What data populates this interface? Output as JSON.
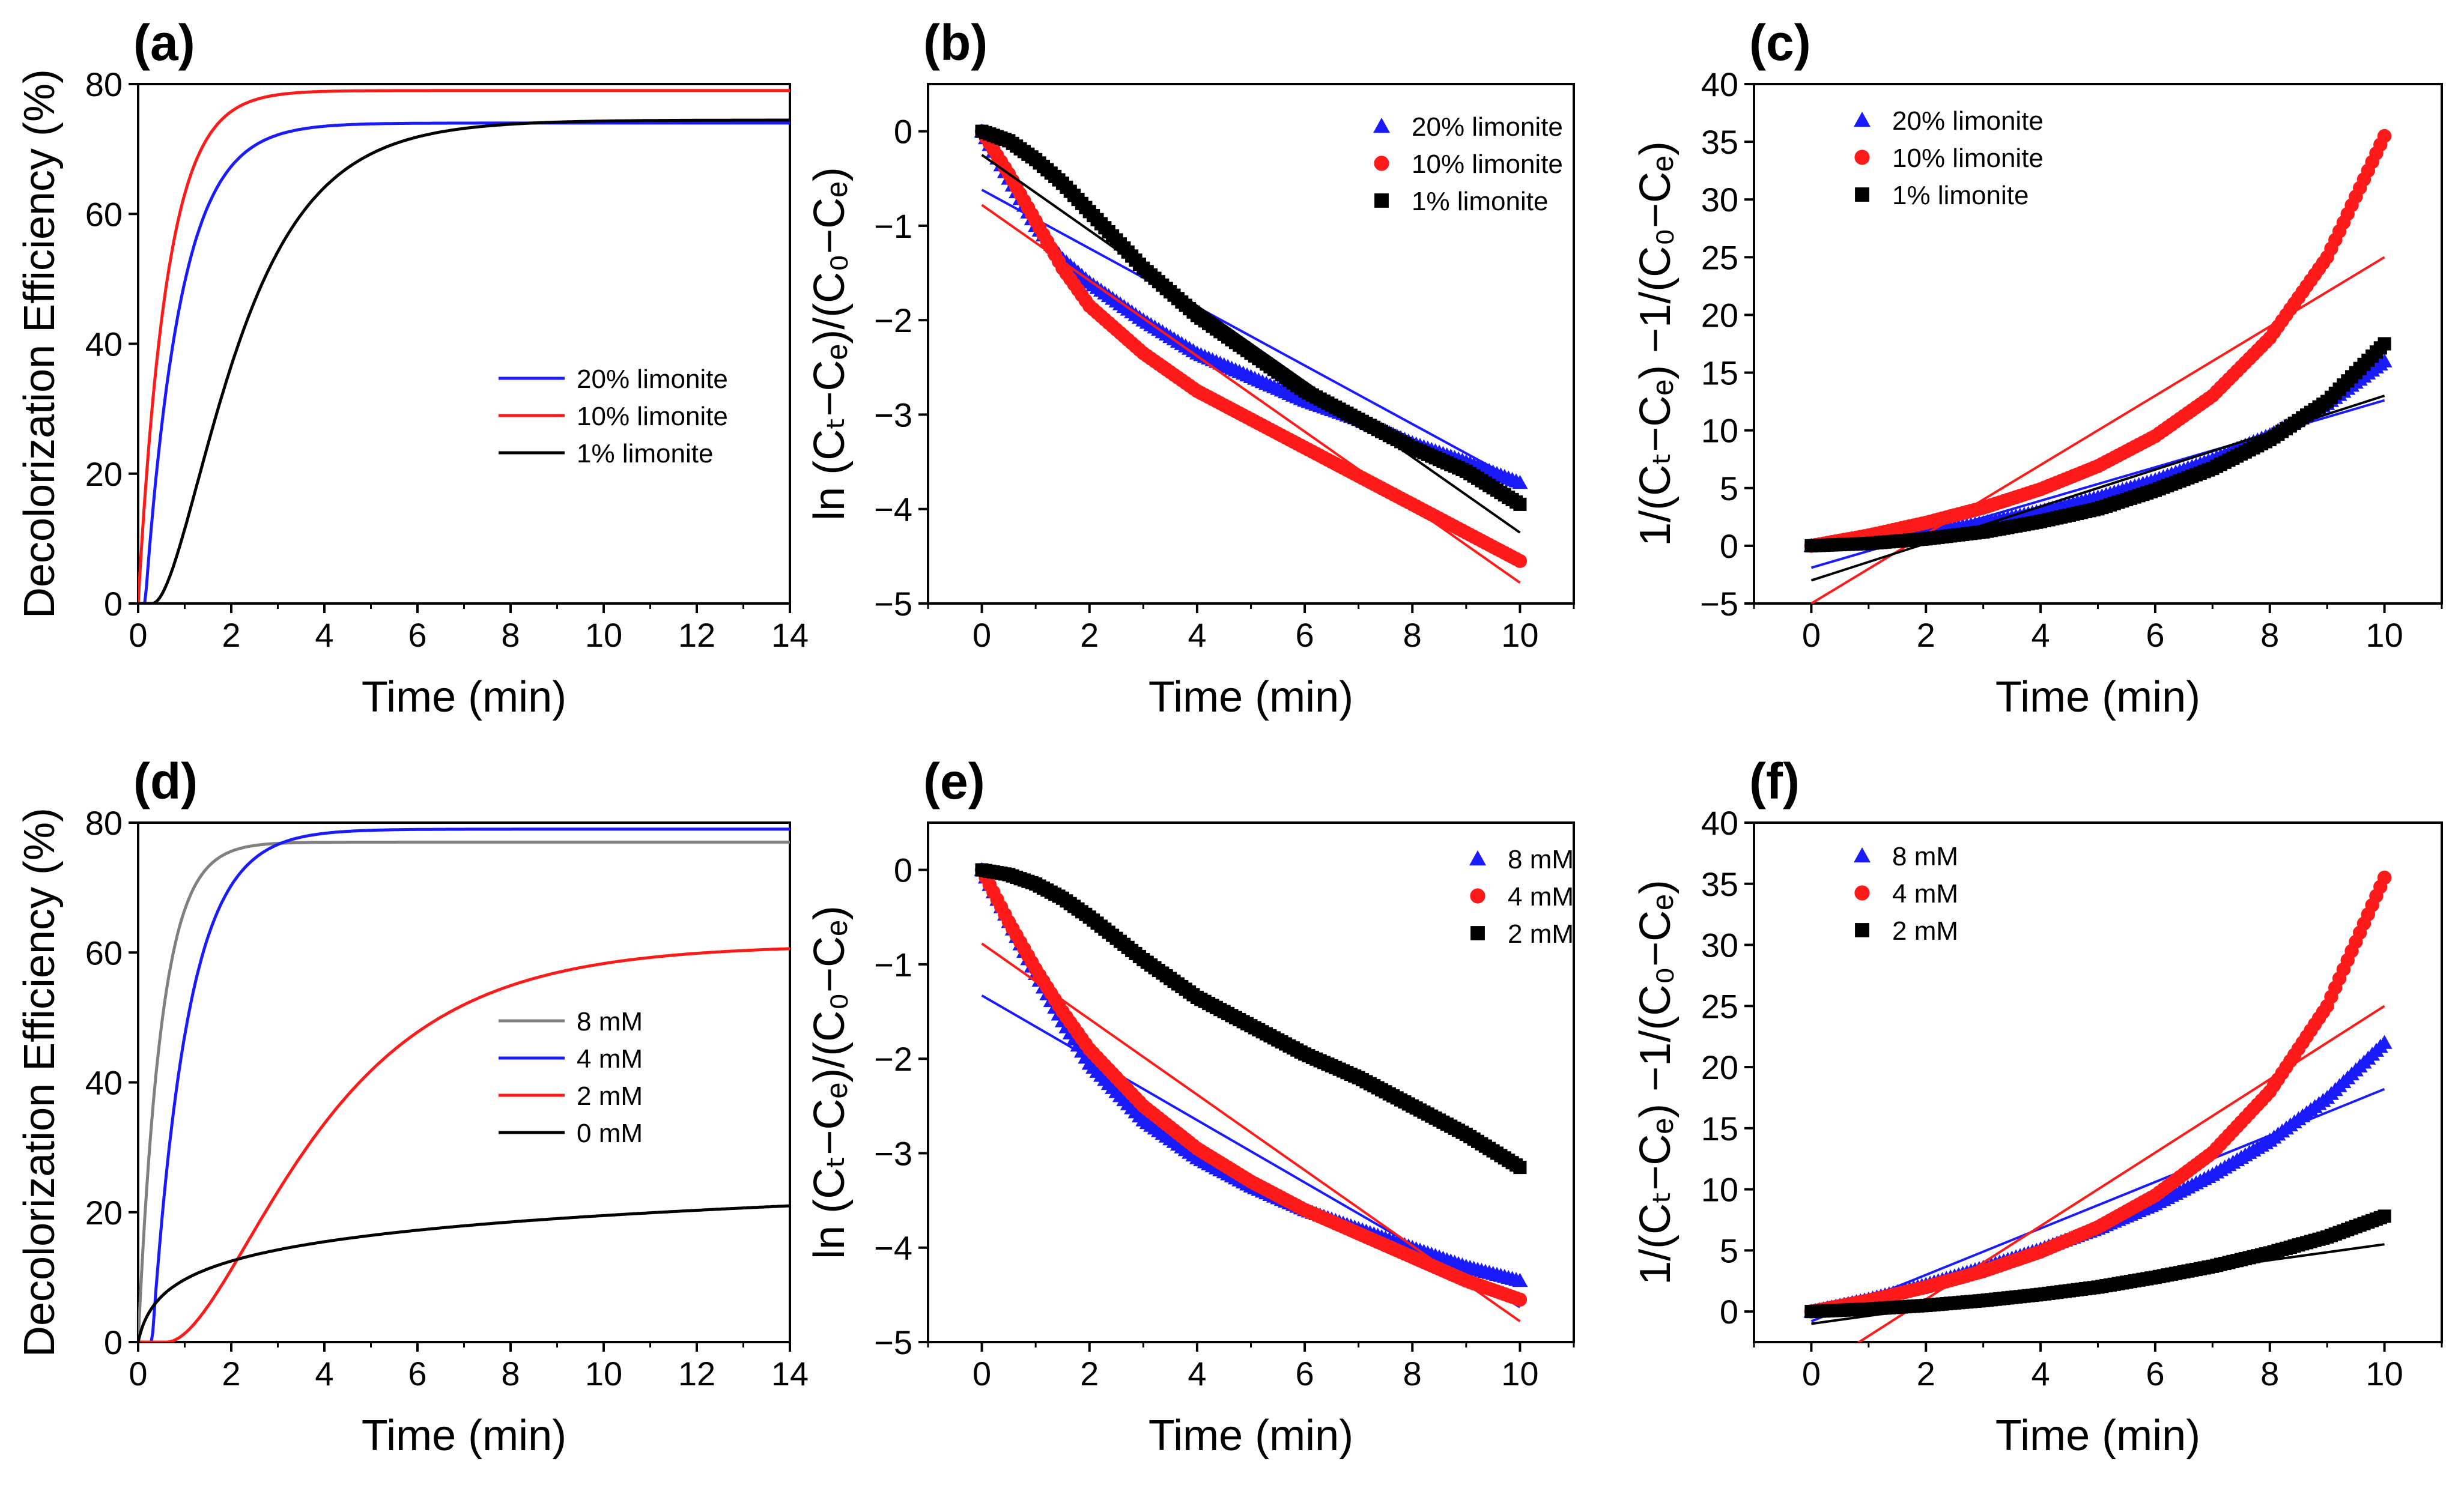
{
  "figure": {
    "panels": [
      "a",
      "b",
      "c",
      "d",
      "e",
      "f"
    ]
  },
  "chart_data": [
    {
      "id": "a",
      "label": "(a)",
      "type": "line",
      "xlabel": "Time (min)",
      "ylabel": "Decolorization Efficiency (%)",
      "xlim": [
        0,
        14
      ],
      "ylim": [
        0,
        80
      ],
      "xticks": [
        "0",
        "2",
        "4",
        "6",
        "8",
        "10",
        "12",
        "14"
      ],
      "yticks": [
        "0",
        "20",
        "40",
        "60",
        "80"
      ],
      "legend_position": "center-right",
      "series": [
        {
          "name": "20% limonite",
          "color": "#1a1aff",
          "kinetic": "exp",
          "A": 74,
          "k": 1.3,
          "t0": 0.15,
          "tend": 14
        },
        {
          "name": "10% limonite",
          "color": "#ff1a1a",
          "kinetic": "exp",
          "A": 79,
          "k": 1.6,
          "t0": 0,
          "tend": 14
        },
        {
          "name": "1% limonite",
          "color": "#000000",
          "kinetic": "sig",
          "A": 73,
          "k": 0.75,
          "t0": 0.3,
          "tend": 14
        }
      ]
    },
    {
      "id": "b",
      "label": "(b)",
      "type": "scatter",
      "xlabel": "Time (min)",
      "ylabel": "ln (Cₜ−Cₑ)/(C₀−Cₑ)",
      "xlim": [
        -1,
        11
      ],
      "ylim": [
        -5,
        0.5
      ],
      "xticks": [
        "0",
        "2",
        "4",
        "6",
        "8",
        "10"
      ],
      "yticks": [
        "-5",
        "-4",
        "-3",
        "-2",
        "-1",
        "0"
      ],
      "legend_position": "top-right",
      "series": [
        {
          "name": "20% limonite",
          "color": "#1a1aff",
          "marker": "triangle",
          "points": [
            [
              0,
              0
            ],
            [
              0.5,
              -0.5
            ],
            [
              1,
              -1.0
            ],
            [
              1.5,
              -1.35
            ],
            [
              2,
              -1.6
            ],
            [
              3,
              -2.0
            ],
            [
              4,
              -2.35
            ],
            [
              5,
              -2.6
            ],
            [
              6,
              -2.85
            ],
            [
              7,
              -3.05
            ],
            [
              8,
              -3.3
            ],
            [
              9,
              -3.5
            ],
            [
              10,
              -3.72
            ]
          ],
          "fit": [
            -0.62,
            -0.31
          ]
        },
        {
          "name": "10% limonite",
          "color": "#ff1a1a",
          "marker": "circle",
          "points": [
            [
              0,
              0
            ],
            [
              0.5,
              -0.45
            ],
            [
              1,
              -0.95
            ],
            [
              1.5,
              -1.45
            ],
            [
              2,
              -1.85
            ],
            [
              3,
              -2.35
            ],
            [
              4,
              -2.75
            ],
            [
              5,
              -3.05
            ],
            [
              6,
              -3.35
            ],
            [
              7,
              -3.65
            ],
            [
              8,
              -3.95
            ],
            [
              9,
              -4.25
            ],
            [
              10,
              -4.55
            ]
          ],
          "fit": [
            -0.78,
            -0.4
          ]
        },
        {
          "name": "1% limonite",
          "color": "#000000",
          "marker": "square",
          "points": [
            [
              0,
              0
            ],
            [
              0.5,
              -0.1
            ],
            [
              1,
              -0.3
            ],
            [
              1.5,
              -0.55
            ],
            [
              2,
              -0.85
            ],
            [
              3,
              -1.45
            ],
            [
              4,
              -1.95
            ],
            [
              5,
              -2.35
            ],
            [
              6,
              -2.75
            ],
            [
              7,
              -3.05
            ],
            [
              8,
              -3.35
            ],
            [
              9,
              -3.6
            ],
            [
              10,
              -3.95
            ]
          ],
          "fit": [
            -0.25,
            -0.4
          ]
        }
      ]
    },
    {
      "id": "c",
      "label": "(c)",
      "type": "scatter",
      "xlabel": "Time (min)",
      "ylabel": "1/(Cₜ−Cₑ) −1/(C₀−Cₑ)",
      "xlim": [
        -1,
        11
      ],
      "ylim": [
        -5,
        40
      ],
      "xticks": [
        "0",
        "2",
        "4",
        "6",
        "8",
        "10"
      ],
      "yticks": [
        "-5",
        "0",
        "5",
        "10",
        "15",
        "20",
        "25",
        "30",
        "35",
        "40"
      ],
      "legend_position": "top-left",
      "series": [
        {
          "name": "20% limonite",
          "color": "#1a1aff",
          "marker": "triangle",
          "points": [
            [
              0,
              0
            ],
            [
              1,
              0.5
            ],
            [
              2,
              1.2
            ],
            [
              3,
              2.0
            ],
            [
              4,
              3.0
            ],
            [
              5,
              4.2
            ],
            [
              6,
              5.7
            ],
            [
              7,
              7.5
            ],
            [
              8,
              9.6
            ],
            [
              9,
              12.3
            ],
            [
              10,
              16.0
            ]
          ],
          "fit": [
            -1.9,
            1.45
          ]
        },
        {
          "name": "10% limonite",
          "color": "#ff1a1a",
          "marker": "circle",
          "points": [
            [
              0,
              0
            ],
            [
              1,
              0.9
            ],
            [
              2,
              2.0
            ],
            [
              3,
              3.3
            ],
            [
              4,
              4.9
            ],
            [
              5,
              6.9
            ],
            [
              6,
              9.5
            ],
            [
              7,
              13.0
            ],
            [
              8,
              18.0
            ],
            [
              9,
              25.0
            ],
            [
              10,
              35.5
            ]
          ],
          "fit": [
            -5.0,
            3.0
          ]
        },
        {
          "name": "1% limonite",
          "color": "#000000",
          "marker": "square",
          "points": [
            [
              0,
              0
            ],
            [
              1,
              0.2
            ],
            [
              2,
              0.6
            ],
            [
              3,
              1.2
            ],
            [
              4,
              2.1
            ],
            [
              5,
              3.2
            ],
            [
              6,
              4.8
            ],
            [
              7,
              6.7
            ],
            [
              8,
              9.2
            ],
            [
              9,
              12.5
            ],
            [
              10,
              17.5
            ]
          ],
          "fit": [
            -3.0,
            1.6
          ]
        }
      ]
    },
    {
      "id": "d",
      "label": "(d)",
      "type": "line",
      "xlabel": "Time (min)",
      "ylabel": "Decolorization Efficiency (%)",
      "xlim": [
        0,
        14
      ],
      "ylim": [
        0,
        80
      ],
      "xticks": [
        "0",
        "2",
        "4",
        "6",
        "8",
        "10",
        "12",
        "14"
      ],
      "yticks": [
        "0",
        "20",
        "40",
        "60",
        "80"
      ],
      "legend_position": "center-right",
      "series": [
        {
          "name": "8 mM",
          "color": "#808080",
          "kinetic": "exp",
          "A": 77,
          "k": 2.0,
          "t0": 0,
          "tend": 14
        },
        {
          "name": "4 mM",
          "color": "#1a1aff",
          "kinetic": "exp",
          "A": 79,
          "k": 1.3,
          "t0": 0.3,
          "tend": 14
        },
        {
          "name": "2 mM",
          "color": "#ff1a1a",
          "kinetic": "sig",
          "A": 60,
          "k": 0.42,
          "t0": 0.6,
          "tend": 14
        },
        {
          "name": "0 mM",
          "color": "#000000",
          "kinetic": "log",
          "A": 4.5,
          "k": 12,
          "t0": 0,
          "tend": 14
        }
      ]
    },
    {
      "id": "e",
      "label": "(e)",
      "type": "scatter",
      "xlabel": "Time (min)",
      "ylabel": "ln (Cₜ−Cₑ)/(C₀−Cₑ)",
      "xlim": [
        -1,
        11
      ],
      "ylim": [
        -5,
        0.5
      ],
      "xticks": [
        "0",
        "2",
        "4",
        "6",
        "8",
        "10"
      ],
      "yticks": [
        "-5",
        "-4",
        "-3",
        "-2",
        "-1",
        "0"
      ],
      "legend_position": "top-right",
      "series": [
        {
          "name": "8 mM",
          "color": "#1a1aff",
          "marker": "triangle",
          "points": [
            [
              0,
              0
            ],
            [
              0.5,
              -0.55
            ],
            [
              1,
              -1.1
            ],
            [
              1.5,
              -1.6
            ],
            [
              2,
              -2.05
            ],
            [
              3,
              -2.65
            ],
            [
              4,
              -3.05
            ],
            [
              5,
              -3.35
            ],
            [
              6,
              -3.6
            ],
            [
              7,
              -3.8
            ],
            [
              8,
              -4.0
            ],
            [
              9,
              -4.2
            ],
            [
              10,
              -4.35
            ]
          ],
          "fit": [
            -1.33,
            -0.33
          ]
        },
        {
          "name": "4 mM",
          "color": "#ff1a1a",
          "marker": "circle",
          "points": [
            [
              0,
              0
            ],
            [
              0.5,
              -0.55
            ],
            [
              1,
              -1.05
            ],
            [
              1.5,
              -1.5
            ],
            [
              2,
              -1.9
            ],
            [
              3,
              -2.5
            ],
            [
              4,
              -2.95
            ],
            [
              5,
              -3.3
            ],
            [
              6,
              -3.6
            ],
            [
              7,
              -3.85
            ],
            [
              8,
              -4.1
            ],
            [
              9,
              -4.35
            ],
            [
              10,
              -4.55
            ]
          ],
          "fit": [
            -0.78,
            -0.4
          ]
        },
        {
          "name": "2 mM",
          "color": "#000000",
          "marker": "square",
          "points": [
            [
              0,
              0
            ],
            [
              0.5,
              -0.05
            ],
            [
              1,
              -0.15
            ],
            [
              1.5,
              -0.3
            ],
            [
              2,
              -0.5
            ],
            [
              3,
              -0.95
            ],
            [
              4,
              -1.35
            ],
            [
              5,
              -1.65
            ],
            [
              6,
              -1.95
            ],
            [
              7,
              -2.2
            ],
            [
              8,
              -2.5
            ],
            [
              9,
              -2.8
            ],
            [
              10,
              -3.15
            ]
          ],
          "fit": null
        }
      ]
    },
    {
      "id": "f",
      "label": "(f)",
      "type": "scatter",
      "xlabel": "Time (min)",
      "ylabel": "1/(Cₜ−Cₑ) −1/(C₀−Cₑ)",
      "xlim": [
        -1,
        11
      ],
      "ylim": [
        -2.5,
        40
      ],
      "xticks": [
        "0",
        "2",
        "4",
        "6",
        "8",
        "10"
      ],
      "yticks": [
        "0",
        "5",
        "10",
        "15",
        "20",
        "25",
        "30",
        "35",
        "40"
      ],
      "legend_position": "top-left",
      "series": [
        {
          "name": "8 mM",
          "color": "#1a1aff",
          "marker": "triangle",
          "points": [
            [
              0,
              0
            ],
            [
              1,
              1.0
            ],
            [
              2,
              2.2
            ],
            [
              3,
              3.6
            ],
            [
              4,
              5.1
            ],
            [
              5,
              6.8
            ],
            [
              6,
              8.8
            ],
            [
              7,
              11.2
            ],
            [
              8,
              14.0
            ],
            [
              9,
              17.5
            ],
            [
              10,
              22.0
            ]
          ],
          "fit": [
            -0.8,
            1.9
          ]
        },
        {
          "name": "4 mM",
          "color": "#ff1a1a",
          "marker": "circle",
          "points": [
            [
              0,
              0
            ],
            [
              1,
              0.9
            ],
            [
              2,
              2.0
            ],
            [
              3,
              3.3
            ],
            [
              4,
              4.9
            ],
            [
              5,
              6.9
            ],
            [
              6,
              9.5
            ],
            [
              7,
              13.0
            ],
            [
              8,
              18.0
            ],
            [
              9,
              25.0
            ],
            [
              10,
              35.5
            ]
          ],
          "fit": [
            -5.0,
            3.0
          ]
        },
        {
          "name": "2 mM",
          "color": "#000000",
          "marker": "square",
          "points": [
            [
              0,
              0
            ],
            [
              1,
              0.2
            ],
            [
              2,
              0.5
            ],
            [
              3,
              0.9
            ],
            [
              4,
              1.4
            ],
            [
              5,
              2.0
            ],
            [
              6,
              2.8
            ],
            [
              7,
              3.7
            ],
            [
              8,
              4.8
            ],
            [
              9,
              6.1
            ],
            [
              10,
              7.8
            ]
          ],
          "fit": [
            -1.0,
            0.65
          ]
        }
      ]
    }
  ]
}
